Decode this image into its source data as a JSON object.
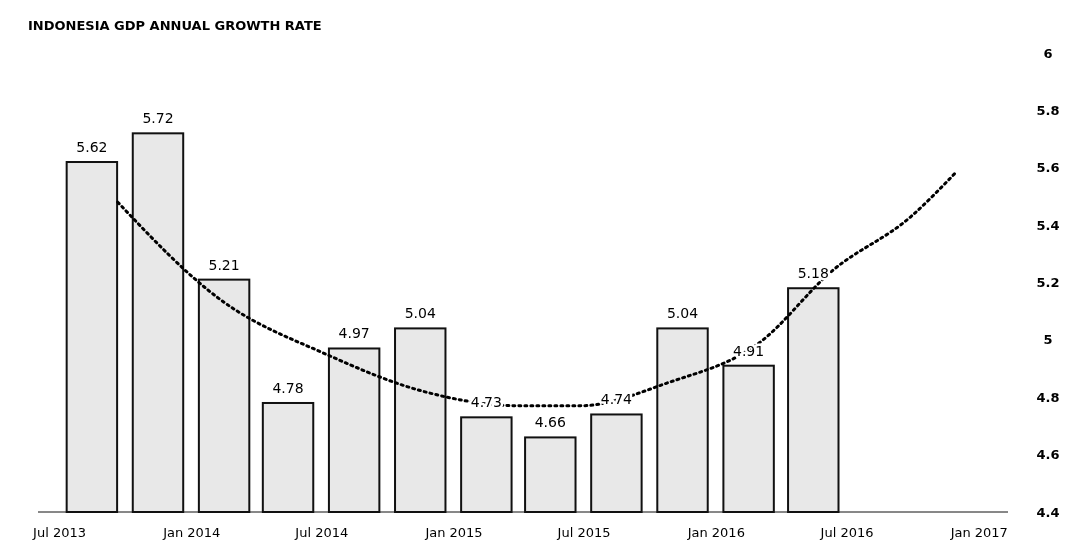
{
  "chart_data": {
    "type": "bar",
    "title": "INDONESIA GDP ANNUAL GROWTH RATE",
    "xlim": [
      "2013-06-01",
      "2017-02-10"
    ],
    "xticks": [
      {
        "value": "2013-07-01",
        "label": "Jul 2013"
      },
      {
        "value": "2014-01-01",
        "label": "Jan 2014"
      },
      {
        "value": "2014-07-01",
        "label": "Jul 2014"
      },
      {
        "value": "2015-01-01",
        "label": "Jan 2015"
      },
      {
        "value": "2015-07-01",
        "label": "Jul 2015"
      },
      {
        "value": "2016-01-01",
        "label": "Jan 2016"
      },
      {
        "value": "2016-07-01",
        "label": "Jul 2016"
      },
      {
        "value": "2017-01-01",
        "label": "Jan 2017"
      }
    ],
    "ylim": [
      4.4,
      6
    ],
    "yticks": [
      4.4,
      4.6,
      4.8,
      5,
      5.2,
      5.4,
      5.6,
      5.8,
      6
    ],
    "grid": false,
    "series": [
      {
        "color": "#e8e8e8",
        "x": [
          "2013-08-15",
          "2013-11-15",
          "2014-02-15",
          "2014-05-15",
          "2014-08-15",
          "2014-11-15",
          "2015-02-15",
          "2015-05-15",
          "2015-08-15",
          "2015-11-15",
          "2016-02-15",
          "2016-05-15"
        ],
        "values": [
          5.62,
          5.72,
          5.21,
          4.78,
          4.97,
          5.04,
          4.73,
          4.66,
          4.74,
          5.04,
          4.91,
          5.18
        ],
        "value_labels": [
          "5.62",
          "5.72",
          "5.21",
          "4.78",
          "4.97",
          "5.04",
          "4.73",
          "4.66",
          "4.74",
          "5.04",
          "4.91",
          "5.18"
        ]
      },
      {
        "type": "line",
        "color": "#000000",
        "line_style": "dotted",
        "marker": "none",
        "x": [
          "2013-09-20",
          "2014-02-10",
          "2014-07-07",
          "2014-11-20",
          "2015-04-03",
          "2015-06-25",
          "2015-10-25",
          "2016-03-01",
          "2016-06-10",
          "2016-09-28",
          "2016-11-28"
        ],
        "values": [
          5.48,
          5.14,
          4.95,
          4.82,
          4.77,
          4.77,
          4.85,
          4.99,
          5.24,
          5.43,
          5.58
        ]
      }
    ]
  }
}
